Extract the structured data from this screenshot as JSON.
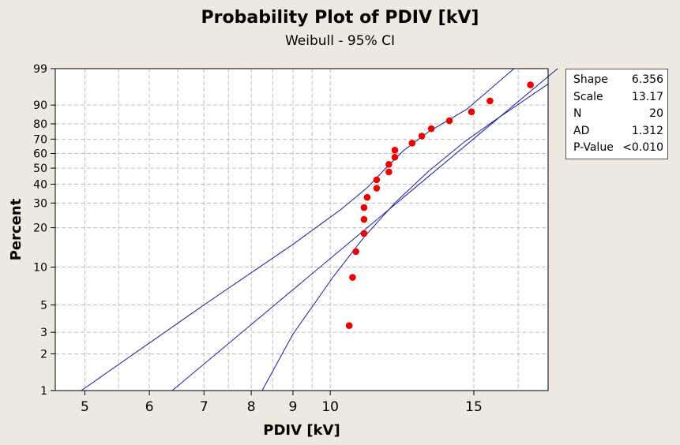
{
  "chart_data": {
    "type": "scatter",
    "title": "Probability Plot of PDIV [kV]",
    "subtitle": "Weibull - 95% CI",
    "xlabel": "PDIV [kV]",
    "ylabel": "Percent",
    "x_scale": "log",
    "y_scale": "weibull",
    "xlim": [
      4.6,
      18.5
    ],
    "ylim": [
      1,
      99
    ],
    "x_ticks": [
      "5",
      "6",
      "7",
      "8",
      "9",
      "10",
      "15"
    ],
    "y_ticks": [
      "1",
      "2",
      "3",
      "5",
      "10",
      "20",
      "30",
      "40",
      "50",
      "60",
      "70",
      "80",
      "90",
      "99"
    ],
    "x_grid": [
      5,
      5.5,
      6,
      6.5,
      7,
      7.5,
      8,
      8.5,
      9,
      9.5,
      10,
      15,
      17
    ],
    "y_grid": [
      1,
      2,
      3,
      5,
      10,
      20,
      30,
      40,
      50,
      60,
      70,
      80,
      90,
      99
    ],
    "grid": true,
    "series": [
      {
        "type": "points",
        "color": "#ee0000",
        "x": [
          10.55,
          10.65,
          10.75,
          11.0,
          11.0,
          11.0,
          11.1,
          11.4,
          11.4,
          11.8,
          11.8,
          12.0,
          12.0,
          12.6,
          12.95,
          13.3,
          14.0,
          14.9,
          15.7,
          17.6
        ],
        "y": [
          3.4,
          8.3,
          13.2,
          18.1,
          23.0,
          27.9,
          32.8,
          37.7,
          42.6,
          47.5,
          52.5,
          57.4,
          62.3,
          67.2,
          72.1,
          77.0,
          81.9,
          86.8,
          91.7,
          96.6
        ]
      },
      {
        "type": "line",
        "color": "#1a1aa6",
        "x": [
          6.4,
          19.0
        ],
        "y": [
          1.0,
          99.0
        ]
      },
      {
        "type": "line",
        "color": "#1a1aa6",
        "x": [
          4.95,
          7.0,
          9.0,
          10.3,
          11.1,
          11.7,
          12.3,
          13.2,
          14.7,
          16.8
        ],
        "y": [
          1.0,
          5.0,
          15.0,
          27.0,
          38.0,
          50.0,
          62.0,
          75.0,
          88.0,
          99.0
        ]
      },
      {
        "type": "line",
        "color": "#1a1aa6",
        "x": [
          8.25,
          9.0,
          10.1,
          11.0,
          12.0,
          13.2,
          14.6,
          15.9,
          18.5
        ],
        "y": [
          1.0,
          2.9,
          8.5,
          17.0,
          30.0,
          48.0,
          68.0,
          82.0,
          96.8
        ]
      }
    ]
  },
  "stats": [
    {
      "label": "Shape",
      "value": "6.356"
    },
    {
      "label": "Scale",
      "value": "13.17"
    },
    {
      "label": "N",
      "value": "20"
    },
    {
      "label": "AD",
      "value": "1.312"
    },
    {
      "label": "P-Value",
      "value": "<0.010"
    }
  ]
}
